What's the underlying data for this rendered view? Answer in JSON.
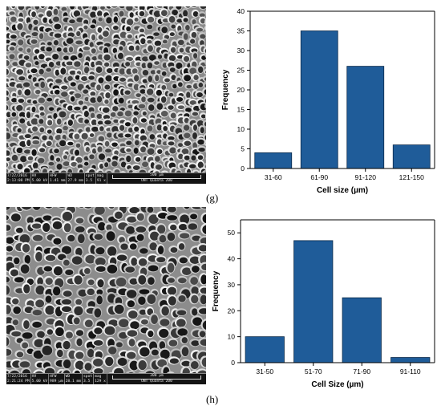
{
  "panels": [
    {
      "label": "(g)",
      "micrograph": {
        "date": "7/22/2016",
        "time": "2:13:08 PM",
        "hv": "5.00 kV",
        "hfw": "1.41 mm",
        "wd": "27.9 mm",
        "spot": "3.5",
        "mag": "91 x",
        "scale_bar": "500 µm",
        "instrument": "UNT Quanta 200",
        "hdr_hv": "HV",
        "hdr_hfw": "HFW",
        "hdr_wd": "WD",
        "hdr_spot": "spot",
        "hdr_mag": "mag"
      }
    },
    {
      "label": "(h)",
      "micrograph": {
        "date": "7/22/2016",
        "time": "2:21:24 PM",
        "hv": "5.00 kV",
        "hfw": "989 µm",
        "wd": "28.1 mm",
        "spot": "3.5",
        "mag": "129 x",
        "scale_bar": "300 µm",
        "instrument": "UNT Quanta 200",
        "hdr_hv": "HV",
        "hdr_hfw": "HFW",
        "hdr_wd": "WD",
        "hdr_spot": "spot",
        "hdr_mag": "mag"
      }
    }
  ],
  "colors": {
    "bar_fill": "#1f5c99",
    "bar_stroke": "#0b2a4a",
    "axis": "#000000"
  },
  "chart_data": [
    {
      "type": "bar",
      "categories": [
        "31-60",
        "61-90",
        "91-120",
        "121-150"
      ],
      "values": [
        4,
        35,
        26,
        6
      ],
      "xlabel": "Cell size (µm)",
      "ylabel": "Frequency",
      "ylim": [
        0,
        40
      ],
      "yticks": [
        0,
        5,
        10,
        15,
        20,
        25,
        30,
        35,
        40
      ],
      "grid": false
    },
    {
      "type": "bar",
      "categories": [
        "31-50",
        "51-70",
        "71-90",
        "91-110"
      ],
      "values": [
        10,
        47,
        25,
        2
      ],
      "xlabel": "Cell Size (µm)",
      "ylabel": "Frequency",
      "ylim": [
        0,
        55
      ],
      "yticks": [
        0,
        10,
        20,
        30,
        40,
        50
      ],
      "grid": false
    }
  ]
}
